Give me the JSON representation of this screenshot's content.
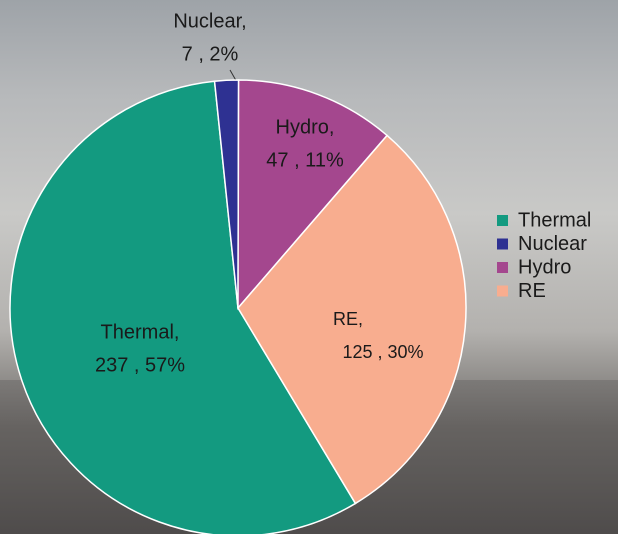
{
  "chart_data": {
    "type": "pie",
    "categories": [
      "Thermal",
      "Nuclear",
      "Hydro",
      "RE"
    ],
    "values": [
      237,
      7,
      47,
      125
    ],
    "value_labels": [
      [
        "Thermal,",
        "237 , 57%"
      ],
      [
        "Nuclear,",
        "7 , 2%"
      ],
      [
        "Hydro,",
        "47 , 11%"
      ],
      [
        "RE,",
        "125 , 30%"
      ]
    ],
    "colors": [
      "#139a80",
      "#2e3192",
      "#a4478e",
      "#f8ad8f"
    ],
    "legend": "right"
  }
}
